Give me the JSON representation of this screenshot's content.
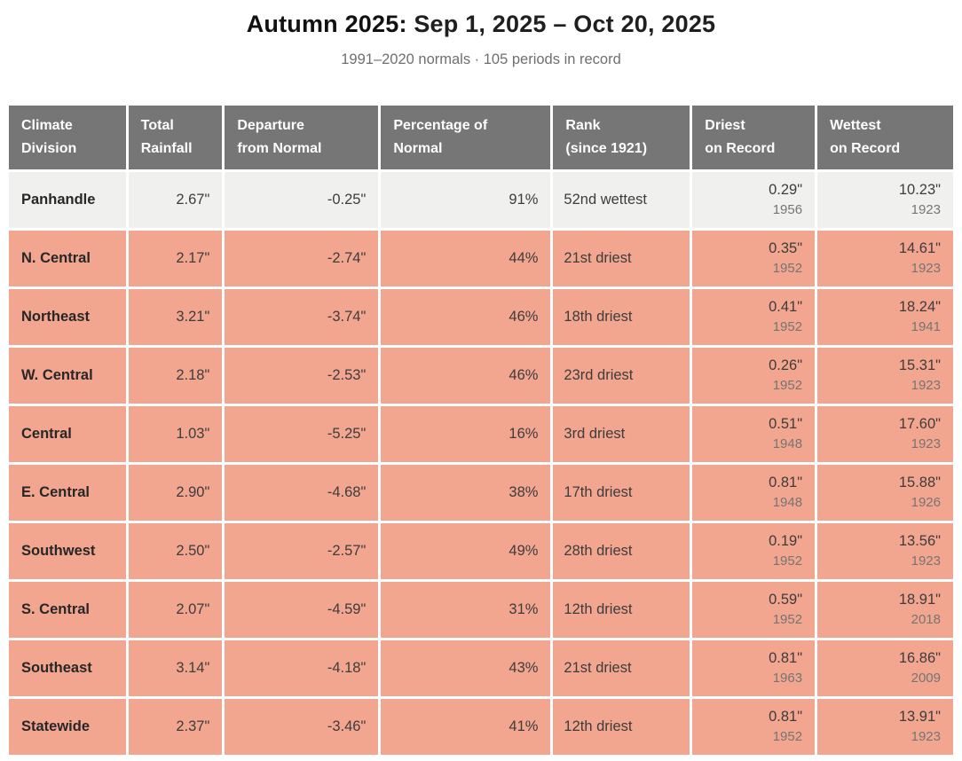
{
  "page": {
    "title_bold": "Autumn 2025:",
    "title_regular": "Sep 1, 2025 – Oct 20, 2025",
    "subtitle": "1991–2020 normals · 105 periods in record"
  },
  "colors": {
    "header_bg": "#767676",
    "header_text": "#ffffff",
    "dry_row_bg": "#f2a58f",
    "neutral_row_bg": "#f0f0ee",
    "value_text": "#3d3d3d",
    "year_text": "#757575"
  },
  "chart_data": {
    "type": "table",
    "title": "Autumn 2025: Sep 1, 2025 – Oct 20, 2025",
    "subtitle": "1991–2020 normals · 105 periods in record",
    "columns": [
      {
        "id": "division",
        "label": "Climate\nDivision"
      },
      {
        "id": "total",
        "label": "Total\nRainfall"
      },
      {
        "id": "departure",
        "label": "Departure\nfrom Normal"
      },
      {
        "id": "pct",
        "label": "Percentage of\nNormal"
      },
      {
        "id": "rank",
        "label": "Rank\n(since 1921)"
      },
      {
        "id": "driest",
        "label": "Driest\non Record"
      },
      {
        "id": "wettest",
        "label": "Wettest\non Record"
      }
    ],
    "rows": [
      {
        "division": "Panhandle",
        "total": "2.67\"",
        "departure": "-0.25\"",
        "pct": "91%",
        "rank": "52nd wettest",
        "driest_value": "0.29\"",
        "driest_year": "1956",
        "wettest_value": "10.23\"",
        "wettest_year": "1923",
        "tone": "neutral"
      },
      {
        "division": "N. Central",
        "total": "2.17\"",
        "departure": "-2.74\"",
        "pct": "44%",
        "rank": "21st driest",
        "driest_value": "0.35\"",
        "driest_year": "1952",
        "wettest_value": "14.61\"",
        "wettest_year": "1923",
        "tone": "dry"
      },
      {
        "division": "Northeast",
        "total": "3.21\"",
        "departure": "-3.74\"",
        "pct": "46%",
        "rank": "18th driest",
        "driest_value": "0.41\"",
        "driest_year": "1952",
        "wettest_value": "18.24\"",
        "wettest_year": "1941",
        "tone": "dry"
      },
      {
        "division": "W. Central",
        "total": "2.18\"",
        "departure": "-2.53\"",
        "pct": "46%",
        "rank": "23rd driest",
        "driest_value": "0.26\"",
        "driest_year": "1952",
        "wettest_value": "15.31\"",
        "wettest_year": "1923",
        "tone": "dry"
      },
      {
        "division": "Central",
        "total": "1.03\"",
        "departure": "-5.25\"",
        "pct": "16%",
        "rank": "3rd driest",
        "driest_value": "0.51\"",
        "driest_year": "1948",
        "wettest_value": "17.60\"",
        "wettest_year": "1923",
        "tone": "dry"
      },
      {
        "division": "E. Central",
        "total": "2.90\"",
        "departure": "-4.68\"",
        "pct": "38%",
        "rank": "17th driest",
        "driest_value": "0.81\"",
        "driest_year": "1948",
        "wettest_value": "15.88\"",
        "wettest_year": "1926",
        "tone": "dry"
      },
      {
        "division": "Southwest",
        "total": "2.50\"",
        "departure": "-2.57\"",
        "pct": "49%",
        "rank": "28th driest",
        "driest_value": "0.19\"",
        "driest_year": "1952",
        "wettest_value": "13.56\"",
        "wettest_year": "1923",
        "tone": "dry"
      },
      {
        "division": "S. Central",
        "total": "2.07\"",
        "departure": "-4.59\"",
        "pct": "31%",
        "rank": "12th driest",
        "driest_value": "0.59\"",
        "driest_year": "1952",
        "wettest_value": "18.91\"",
        "wettest_year": "2018",
        "tone": "dry"
      },
      {
        "division": "Southeast",
        "total": "3.14\"",
        "departure": "-4.18\"",
        "pct": "43%",
        "rank": "21st driest",
        "driest_value": "0.81\"",
        "driest_year": "1963",
        "wettest_value": "16.86\"",
        "wettest_year": "2009",
        "tone": "dry"
      },
      {
        "division": "Statewide",
        "total": "2.37\"",
        "departure": "-3.46\"",
        "pct": "41%",
        "rank": "12th driest",
        "driest_value": "0.81\"",
        "driest_year": "1952",
        "wettest_value": "13.91\"",
        "wettest_year": "1923",
        "tone": "dry"
      }
    ]
  }
}
